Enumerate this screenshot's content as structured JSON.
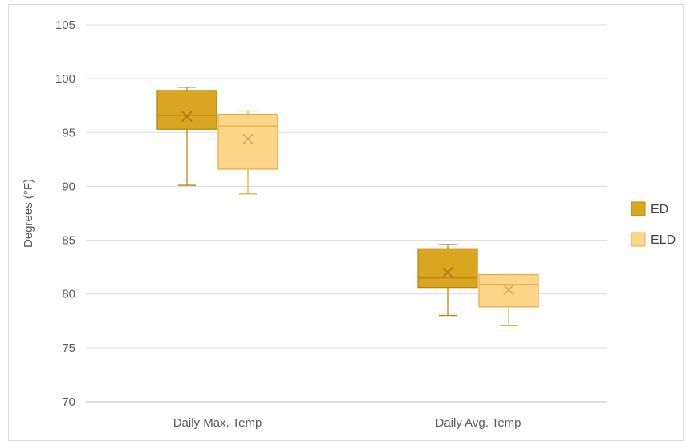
{
  "chart_data": {
    "type": "box",
    "title": "",
    "xlabel": "",
    "ylabel": "Degrees (°F)",
    "ylim": [
      70,
      105
    ],
    "yticks": [
      70,
      75,
      80,
      85,
      90,
      95,
      100,
      105
    ],
    "grid": true,
    "legend_position": "right",
    "categories": [
      "Daily Max. Temp",
      "Daily Avg. Temp"
    ],
    "series": [
      {
        "name": "ED",
        "color": "#DAA520",
        "boxes": [
          {
            "min": 90.1,
            "q1": 95.3,
            "median": 96.6,
            "q3": 98.9,
            "max": 99.2,
            "mean": 96.5
          },
          {
            "min": 78.0,
            "q1": 80.6,
            "median": 81.5,
            "q3": 84.2,
            "max": 84.6,
            "mean": 82.0
          }
        ]
      },
      {
        "name": "ELD",
        "color": "#FFD58A",
        "boxes": [
          {
            "min": 89.3,
            "q1": 91.6,
            "median": 95.6,
            "q3": 96.7,
            "max": 97.0,
            "mean": 94.4
          },
          {
            "min": 77.1,
            "q1": 78.8,
            "median": 80.9,
            "q3": 81.8,
            "max": 81.8,
            "mean": 80.4
          }
        ]
      }
    ]
  }
}
